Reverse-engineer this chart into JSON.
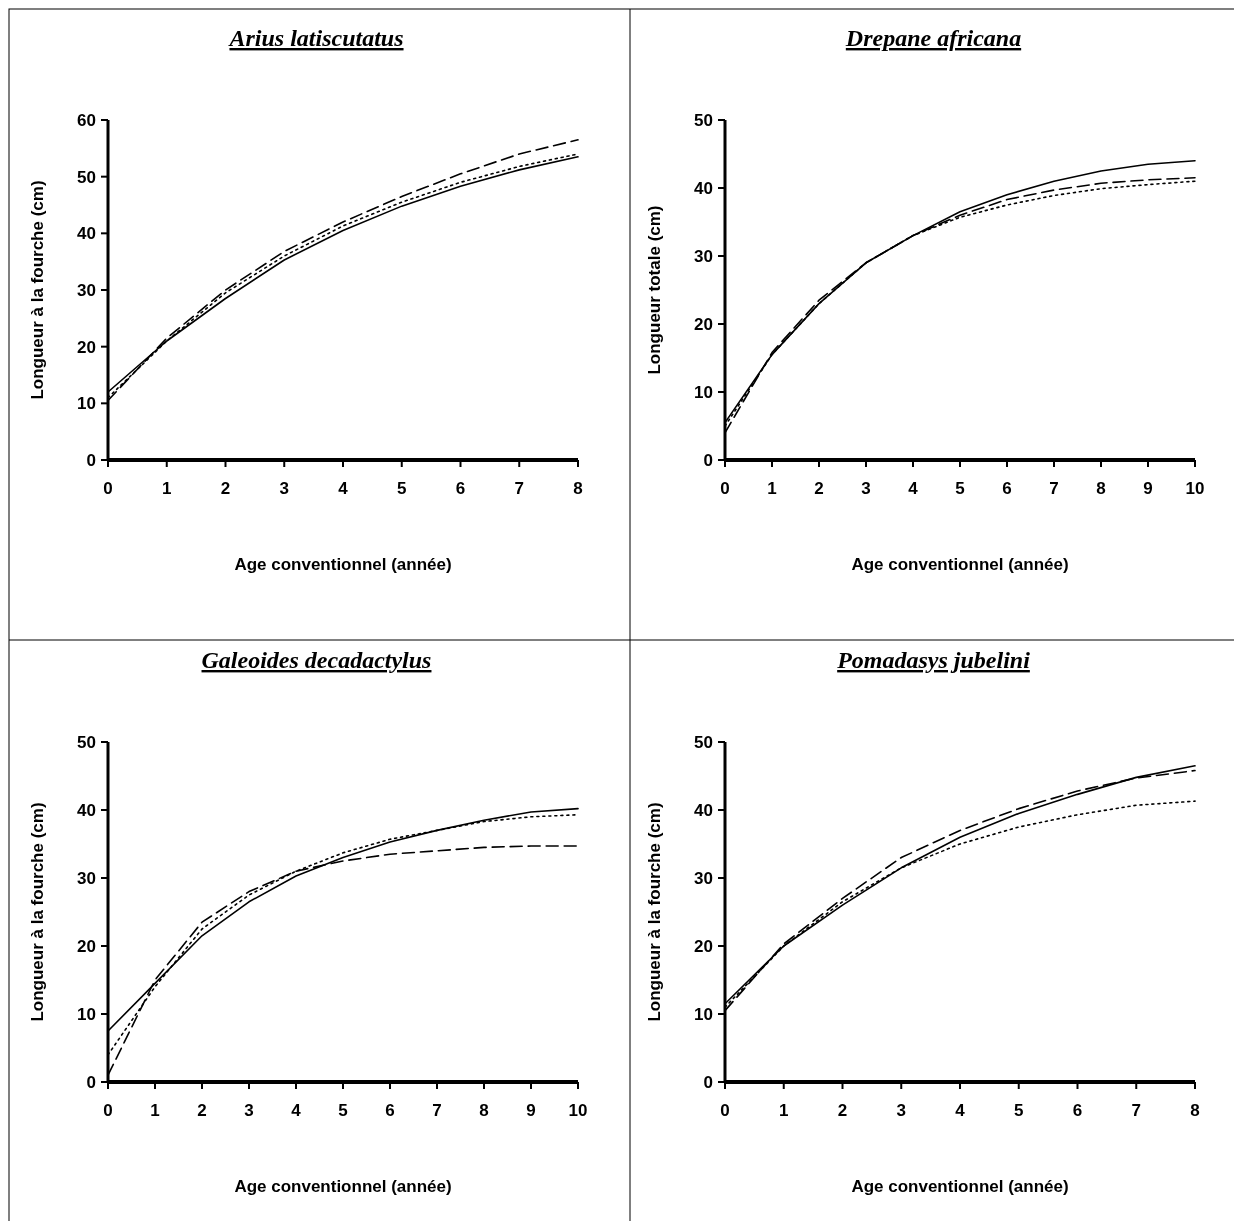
{
  "chart_data": [
    {
      "type": "line",
      "title": "Arius latiscutatus",
      "xlabel": "Age conventionnel (année)",
      "ylabel": "Longueur à la fourche (cm)",
      "x": [
        0,
        1,
        2,
        3,
        4,
        5,
        6,
        7,
        8
      ],
      "xlim": [
        0,
        8
      ],
      "xticks": [
        0,
        1,
        2,
        3,
        4,
        5,
        6,
        7,
        8
      ],
      "ylim": [
        0,
        60
      ],
      "yticks": [
        0,
        10,
        20,
        30,
        40,
        50,
        60
      ],
      "series": [
        {
          "color": "#000000",
          "line_style": "solid",
          "values": [
            12,
            21,
            28.5,
            35.3,
            40.5,
            44.8,
            48.3,
            51.2,
            53.5
          ]
        },
        {
          "color": "#000000",
          "line_style": "dashed",
          "values": [
            10.5,
            21.5,
            30,
            36.8,
            42,
            46.5,
            50.5,
            54,
            56.5
          ]
        },
        {
          "color": "#000000",
          "line_style": "dotted",
          "values": [
            11,
            21,
            29.5,
            36,
            41.3,
            45.5,
            49,
            51.8,
            54
          ]
        }
      ]
    },
    {
      "type": "line",
      "title": "Drepane africana",
      "xlabel": "Age conventionnel (année)",
      "ylabel": "Longueur totale (cm)",
      "x": [
        0,
        1,
        2,
        3,
        4,
        5,
        6,
        7,
        8,
        9,
        10
      ],
      "xlim": [
        0,
        10
      ],
      "xticks": [
        0,
        1,
        2,
        3,
        4,
        5,
        6,
        7,
        8,
        9,
        10
      ],
      "ylim": [
        0,
        50
      ],
      "yticks": [
        0,
        10,
        20,
        30,
        40,
        50
      ],
      "series": [
        {
          "color": "#000000",
          "line_style": "solid",
          "values": [
            5.5,
            15.5,
            23,
            29,
            33,
            36.5,
            39,
            41,
            42.5,
            43.5,
            44
          ]
        },
        {
          "color": "#000000",
          "line_style": "dashed",
          "values": [
            4,
            15.8,
            23.5,
            29,
            33,
            36,
            38.3,
            39.7,
            40.7,
            41.2,
            41.5
          ]
        },
        {
          "color": "#000000",
          "line_style": "dotted",
          "values": [
            5,
            15.5,
            23,
            29,
            33,
            35.7,
            37.5,
            38.9,
            39.9,
            40.5,
            41
          ]
        }
      ]
    },
    {
      "type": "line",
      "title": "Galeoides decadactylus",
      "xlabel": "Age conventionnel (année)",
      "ylabel": "Longueur à la fourche (cm)",
      "x": [
        0,
        1,
        2,
        3,
        4,
        5,
        6,
        7,
        8,
        9,
        10
      ],
      "xlim": [
        0,
        10
      ],
      "xticks": [
        0,
        1,
        2,
        3,
        4,
        5,
        6,
        7,
        8,
        9,
        10
      ],
      "ylim": [
        0,
        50
      ],
      "yticks": [
        0,
        10,
        20,
        30,
        40,
        50
      ],
      "series": [
        {
          "color": "#000000",
          "line_style": "solid",
          "values": [
            7.5,
            14.5,
            21.5,
            26.5,
            30.3,
            33,
            35.3,
            37,
            38.5,
            39.7,
            40.2
          ]
        },
        {
          "color": "#000000",
          "line_style": "dashed",
          "values": [
            1,
            15,
            23.5,
            28,
            31,
            32.5,
            33.5,
            34,
            34.5,
            34.7,
            34.7
          ]
        },
        {
          "color": "#000000",
          "line_style": "dotted",
          "values": [
            4,
            14,
            22.5,
            27.5,
            31,
            33.7,
            35.7,
            37,
            38.3,
            39,
            39.3
          ]
        }
      ]
    },
    {
      "type": "line",
      "title": "Pomadasys jubelini",
      "xlabel": "Age conventionnel (année)",
      "ylabel": "Longueur à la fourche (cm)",
      "x": [
        0,
        1,
        2,
        3,
        4,
        5,
        6,
        7,
        8
      ],
      "xlim": [
        0,
        8
      ],
      "xticks": [
        0,
        1,
        2,
        3,
        4,
        5,
        6,
        7,
        8
      ],
      "ylim": [
        0,
        50
      ],
      "yticks": [
        0,
        10,
        20,
        30,
        40,
        50
      ],
      "series": [
        {
          "color": "#000000",
          "line_style": "solid",
          "values": [
            11.5,
            20,
            26,
            31.5,
            36,
            39.5,
            42.3,
            44.8,
            46.5
          ]
        },
        {
          "color": "#000000",
          "line_style": "dashed",
          "values": [
            10.5,
            20.3,
            27,
            33,
            37,
            40.2,
            42.8,
            44.7,
            45.8
          ]
        },
        {
          "color": "#000000",
          "line_style": "dotted",
          "values": [
            11,
            20,
            26.5,
            31.5,
            35,
            37.5,
            39.3,
            40.7,
            41.3
          ]
        }
      ]
    }
  ]
}
